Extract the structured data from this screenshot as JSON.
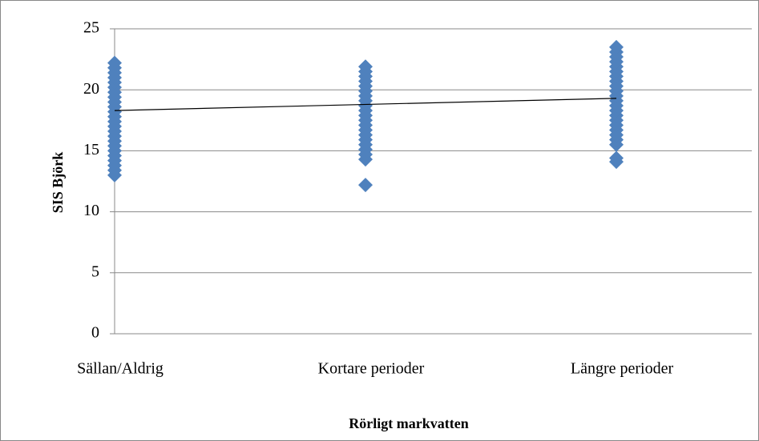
{
  "chart_data": {
    "type": "strip",
    "x_label": "Rörligt markvatten",
    "y_label": "SIS Björk",
    "categories": [
      "Sällan/Aldrig",
      "Kortare perioder",
      "Längre perioder"
    ],
    "values": [
      [
        13.0,
        13.4,
        13.8,
        14.2,
        14.6,
        15.0,
        15.4,
        15.8,
        16.2,
        16.6,
        17.0,
        17.4,
        17.8,
        18.2,
        18.6,
        19.0,
        19.4,
        19.8,
        20.2,
        20.6,
        21.0,
        21.4,
        21.8,
        22.2
      ],
      [
        12.2,
        14.3,
        14.7,
        15.1,
        15.5,
        15.9,
        16.3,
        16.7,
        17.1,
        17.5,
        17.9,
        18.3,
        18.7,
        19.1,
        19.5,
        19.9,
        20.3,
        20.7,
        21.1,
        21.5,
        21.9
      ],
      [
        14.1,
        14.4,
        15.5,
        15.9,
        16.3,
        16.7,
        17.1,
        17.5,
        17.9,
        18.3,
        18.7,
        19.1,
        19.5,
        19.9,
        20.3,
        20.7,
        21.1,
        21.5,
        21.9,
        22.3,
        22.7,
        23.1,
        23.5
      ]
    ],
    "color": "#4f81bd",
    "trendline": [
      18.3,
      19.3
    ],
    "trendline_color": "#000000",
    "ylim": [
      0,
      25
    ],
    "yticks": [
      0,
      5,
      10,
      15,
      20,
      25
    ],
    "grid": true
  }
}
